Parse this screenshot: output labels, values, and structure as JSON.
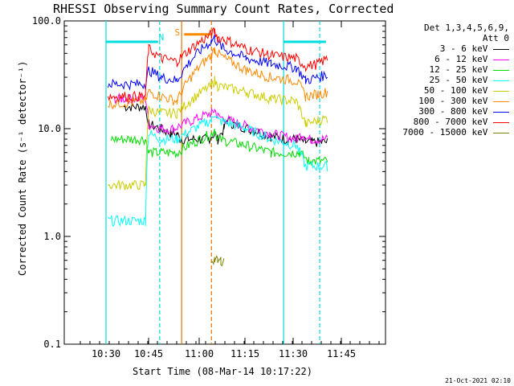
{
  "chart_data": {
    "type": "line",
    "title": "RHESSI Observing Summary Count Rates, Corrected",
    "xlabel": "Start Time (08-Mar-14 10:17:22)",
    "ylabel": "Corrected Count Rate (s⁻¹ detector⁻¹)",
    "ylog": true,
    "ylim": [
      0.1,
      100
    ],
    "yticks": [
      "0.1",
      "1.0",
      "10.0",
      "100.0"
    ],
    "xticks": [
      "10:30",
      "10:45",
      "11:00",
      "11:15",
      "11:30",
      "11:45"
    ],
    "xrange_min": [
      17.4,
      88
    ],
    "legend_header": [
      "Det 1,3,4,5,6,9,",
      "Att 0"
    ],
    "annotations": [
      {
        "text": "N",
        "color": "#00e0e0"
      },
      {
        "text": "S",
        "color": "#ff8800"
      }
    ],
    "series": [
      {
        "name": "3 - 6 keV",
        "color": "#000000",
        "pts": [
          [
            23,
            16
          ],
          [
            30,
            16
          ],
          [
            31,
            11
          ],
          [
            35,
            10
          ],
          [
            38,
            9
          ],
          [
            40,
            9
          ],
          [
            41,
            8
          ],
          [
            43,
            8
          ],
          [
            49,
            8
          ],
          [
            50,
            8
          ],
          [
            52,
            9
          ],
          [
            53,
            8
          ],
          [
            55,
            10
          ],
          [
            56,
            12
          ],
          [
            58,
            11
          ],
          [
            63,
            10
          ],
          [
            70,
            8.5
          ],
          [
            75,
            8
          ],
          [
            78,
            8
          ],
          [
            81,
            7.5
          ],
          [
            83,
            7.5
          ],
          [
            88,
            7.5
          ]
        ]
      },
      {
        "name": "6 - 12 keV",
        "color": "#ff00ff",
        "pts": [
          [
            20,
            19
          ],
          [
            30,
            19
          ],
          [
            31,
            11
          ],
          [
            35,
            10
          ],
          [
            39,
            10
          ],
          [
            51,
            14
          ],
          [
            52,
            15
          ],
          [
            53,
            13
          ],
          [
            60,
            11
          ],
          [
            70,
            9
          ],
          [
            78,
            8
          ],
          [
            80,
            9
          ],
          [
            82,
            8
          ],
          [
            83,
            8
          ],
          [
            88,
            8
          ]
        ]
      },
      {
        "name": "12 - 25 keV",
        "color": "#00dd00",
        "pts": [
          [
            19,
            8
          ],
          [
            30,
            8
          ],
          [
            31,
            6
          ],
          [
            40,
            6
          ],
          [
            51,
            9
          ],
          [
            52,
            10
          ],
          [
            53,
            8
          ],
          [
            62,
            7
          ],
          [
            70,
            6
          ],
          [
            78,
            6
          ],
          [
            79,
            6
          ],
          [
            82,
            5
          ],
          [
            83,
            5
          ],
          [
            88,
            5
          ]
        ]
      },
      {
        "name": "25 - 50 keV",
        "color": "#00ffff",
        "pts": [
          [
            18,
            1.4
          ],
          [
            30,
            1.4
          ],
          [
            31,
            9
          ],
          [
            35,
            8
          ],
          [
            40,
            8
          ],
          [
            51,
            12
          ],
          [
            52,
            14
          ],
          [
            53,
            12
          ],
          [
            62,
            10
          ],
          [
            70,
            8
          ],
          [
            78,
            7
          ],
          [
            81,
            4.5
          ],
          [
            88,
            4.5
          ]
        ]
      },
      {
        "name": "50 - 100 keV",
        "color": "#cccc00",
        "pts": [
          [
            18,
            3
          ],
          [
            30,
            3
          ],
          [
            31,
            15
          ],
          [
            35,
            14
          ],
          [
            40,
            14
          ],
          [
            51,
            25
          ],
          [
            52,
            28
          ],
          [
            53,
            25
          ],
          [
            62,
            22
          ],
          [
            70,
            19
          ],
          [
            78,
            18
          ],
          [
            81,
            11
          ],
          [
            85,
            12
          ],
          [
            88,
            12.5
          ]
        ]
      },
      {
        "name": "100 - 300 keV",
        "color": "#ff8800",
        "pts": [
          [
            18,
            17
          ],
          [
            30,
            18
          ],
          [
            31,
            22
          ],
          [
            35,
            20
          ],
          [
            40,
            18
          ],
          [
            51,
            48
          ],
          [
            52,
            55
          ],
          [
            53,
            50
          ],
          [
            55,
            45
          ],
          [
            62,
            35
          ],
          [
            70,
            30
          ],
          [
            78,
            28
          ],
          [
            81,
            20
          ],
          [
            85,
            21
          ],
          [
            88,
            22
          ]
        ]
      },
      {
        "name": "300 - 800 keV",
        "color": "#0000ff",
        "pts": [
          [
            18,
            26
          ],
          [
            30,
            26
          ],
          [
            31,
            35
          ],
          [
            35,
            30
          ],
          [
            40,
            28
          ],
          [
            51,
            65
          ],
          [
            52,
            70
          ],
          [
            53,
            62
          ],
          [
            55,
            55
          ],
          [
            62,
            45
          ],
          [
            70,
            40
          ],
          [
            78,
            37
          ],
          [
            81,
            28
          ],
          [
            85,
            30
          ],
          [
            88,
            32
          ]
        ]
      },
      {
        "name": "800 - 7000 keV",
        "color": "#ff0000",
        "pts": [
          [
            18,
            20
          ],
          [
            30,
            20
          ],
          [
            31,
            55
          ],
          [
            35,
            45
          ],
          [
            40,
            42
          ],
          [
            51,
            75
          ],
          [
            52,
            80
          ],
          [
            53,
            70
          ],
          [
            55,
            68
          ],
          [
            62,
            55
          ],
          [
            70,
            48
          ],
          [
            78,
            45
          ],
          [
            81,
            38
          ],
          [
            85,
            40
          ],
          [
            88,
            45
          ]
        ]
      },
      {
        "name": "7000 - 15000 keV",
        "color": "#808000",
        "pts": [
          [
            51,
            0.6
          ],
          [
            52,
            0.62
          ],
          [
            53,
            0.58
          ],
          [
            54,
            0.6
          ],
          [
            55,
            0.6
          ]
        ]
      }
    ],
    "vlines": [
      {
        "x": 17.4,
        "color": "#00dddd",
        "dash": false
      },
      {
        "x": 34.5,
        "color": "#00dddd",
        "dash": true
      },
      {
        "x": 41.5,
        "color": "#dd7700",
        "dash": false
      },
      {
        "x": 51.0,
        "color": "#dd7700",
        "dash": true
      },
      {
        "x": 74.0,
        "color": "#00dddd",
        "dash": false
      },
      {
        "x": 85.5,
        "color": "#00dddd",
        "dash": true
      }
    ],
    "hbars": [
      {
        "x0": 17.4,
        "x1": 34,
        "y": 64,
        "color": "#00dddd"
      },
      {
        "x0": 42.3,
        "x1": 50.8,
        "y": 75,
        "color": "#ff8800"
      },
      {
        "x0": 74,
        "x1": 87.5,
        "y": 64,
        "color": "#00dddd"
      }
    ]
  },
  "timestamp": "21-Oct-2021 02:10"
}
